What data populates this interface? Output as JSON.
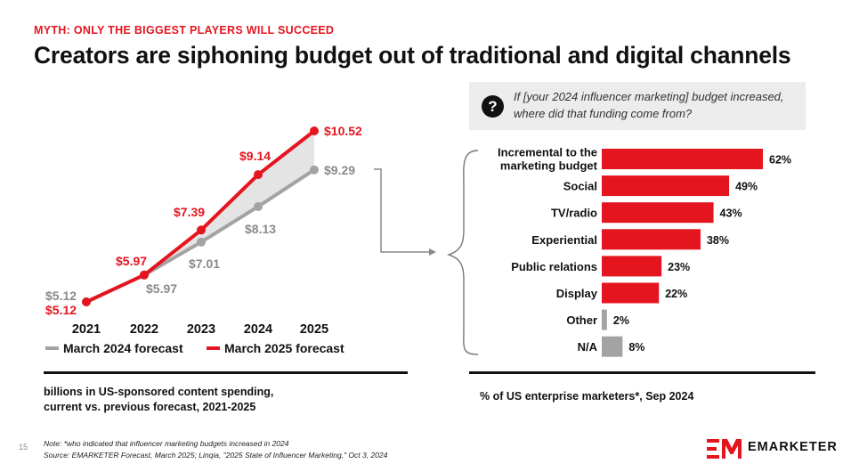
{
  "header": {
    "kicker": "MYTH: ONLY THE BIGGEST PLAYERS WILL SUCCEED",
    "title": "Creators are siphoning budget out of traditional and digital channels"
  },
  "question": {
    "icon": "question-icon",
    "glyph": "?",
    "text": "If [your 2024 influencer marketing] budget increased, where did that funding come from?"
  },
  "colors": {
    "accent": "#e4151f",
    "gray": "#a3a3a3",
    "text": "#111111"
  },
  "chart_data": [
    {
      "type": "line",
      "categories": [
        "2021",
        "2022",
        "2023",
        "2024",
        "2025"
      ],
      "series": [
        {
          "name": "March 2024 forecast",
          "color": "#a3a3a3",
          "values": [
            5.12,
            5.97,
            7.01,
            8.13,
            9.29
          ],
          "labels": [
            "$5.12",
            "$5.97",
            "$7.01",
            "$8.13",
            "$9.29"
          ]
        },
        {
          "name": "March 2025 forecast",
          "color": "#e4151f",
          "values": [
            5.12,
            5.97,
            7.39,
            9.14,
            10.52
          ],
          "labels": [
            "$5.12",
            "$5.97",
            "$7.39",
            "$9.14",
            "$10.52"
          ]
        }
      ],
      "ylim": [
        5,
        10.6
      ],
      "legend": "bottom",
      "caption_lines": [
        "billions in US-sponsored content spending,",
        "current vs. previous forecast, 2021-2025"
      ]
    },
    {
      "type": "bar",
      "orientation": "horizontal",
      "categories": [
        [
          "Incremental to the",
          "marketing budget"
        ],
        [
          "Social"
        ],
        [
          "TV/radio"
        ],
        [
          "Experiential"
        ],
        [
          "Public relations"
        ],
        [
          "Display"
        ],
        [
          "Other"
        ],
        [
          "N/A"
        ]
      ],
      "values": [
        62,
        49,
        43,
        38,
        23,
        22,
        2,
        8
      ],
      "value_labels": [
        "62%",
        "49%",
        "43%",
        "38%",
        "23%",
        "22%",
        "2%",
        "8%"
      ],
      "colors": [
        "#e4151f",
        "#e4151f",
        "#e4151f",
        "#e4151f",
        "#e4151f",
        "#e4151f",
        "#a3a3a3",
        "#a3a3a3"
      ],
      "xlim": [
        0,
        100
      ],
      "caption": "% of US enterprise marketers*, Sep 2024"
    }
  ],
  "footer": {
    "page_number": "15",
    "note": "Note: *who indicated that influencer marketing budgets increased in 2024",
    "source": "Source: EMARKETER Forecast, March 2025; Linqia, \"2025 State of Influencer Marketing,\" Oct 3, 2024",
    "brand": "EMARKETER"
  }
}
